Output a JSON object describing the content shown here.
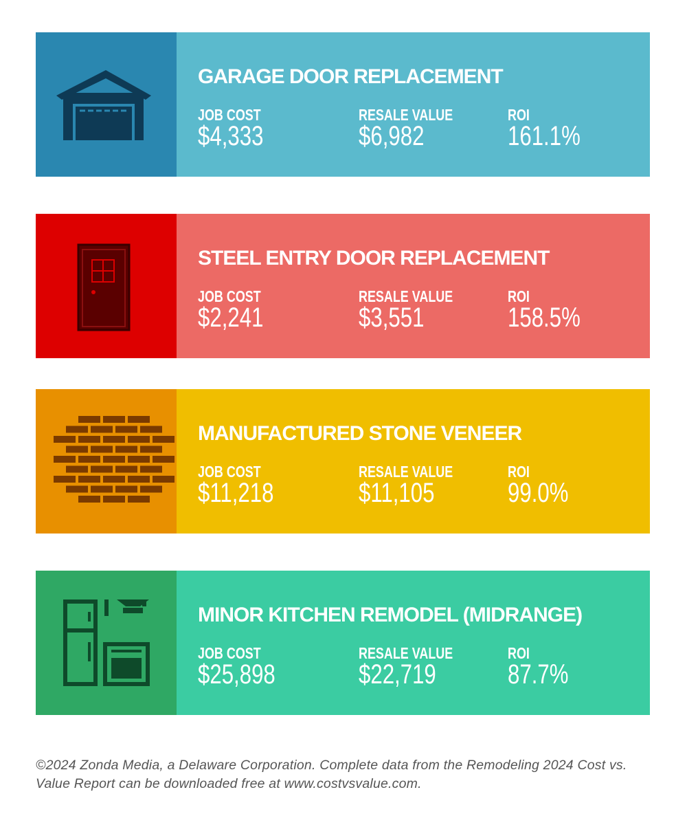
{
  "cards": [
    {
      "title": "GARAGE DOOR REPLACEMENT",
      "job_cost_label": "JOB COST",
      "job_cost": "$4,333",
      "resale_value_label": "RESALE VALUE",
      "resale_value": "$6,982",
      "roi_label": "ROI",
      "roi": "161.1%"
    },
    {
      "title": "STEEL ENTRY DOOR REPLACEMENT",
      "job_cost_label": "JOB COST",
      "job_cost": "$2,241",
      "resale_value_label": "RESALE VALUE",
      "resale_value": "$3,551",
      "roi_label": "ROI",
      "roi": "158.5%"
    },
    {
      "title": "MANUFACTURED STONE VENEER",
      "job_cost_label": "JOB COST",
      "job_cost": "$11,218",
      "resale_value_label": "RESALE VALUE",
      "resale_value": "$11,105",
      "roi_label": "ROI",
      "roi": "99.0%"
    },
    {
      "title": "MINOR KITCHEN REMODEL (MIDRANGE)",
      "job_cost_label": "JOB COST",
      "job_cost": "$25,898",
      "resale_value_label": "RESALE VALUE",
      "resale_value": "$22,719",
      "roi_label": "ROI",
      "roi": "87.7%"
    }
  ],
  "footer": "©2024 Zonda Media, a Delaware Corporation. Complete data from the Remodeling 2024 Cost vs. Value Report can be downloaded free at www.costvsvalue.com."
}
